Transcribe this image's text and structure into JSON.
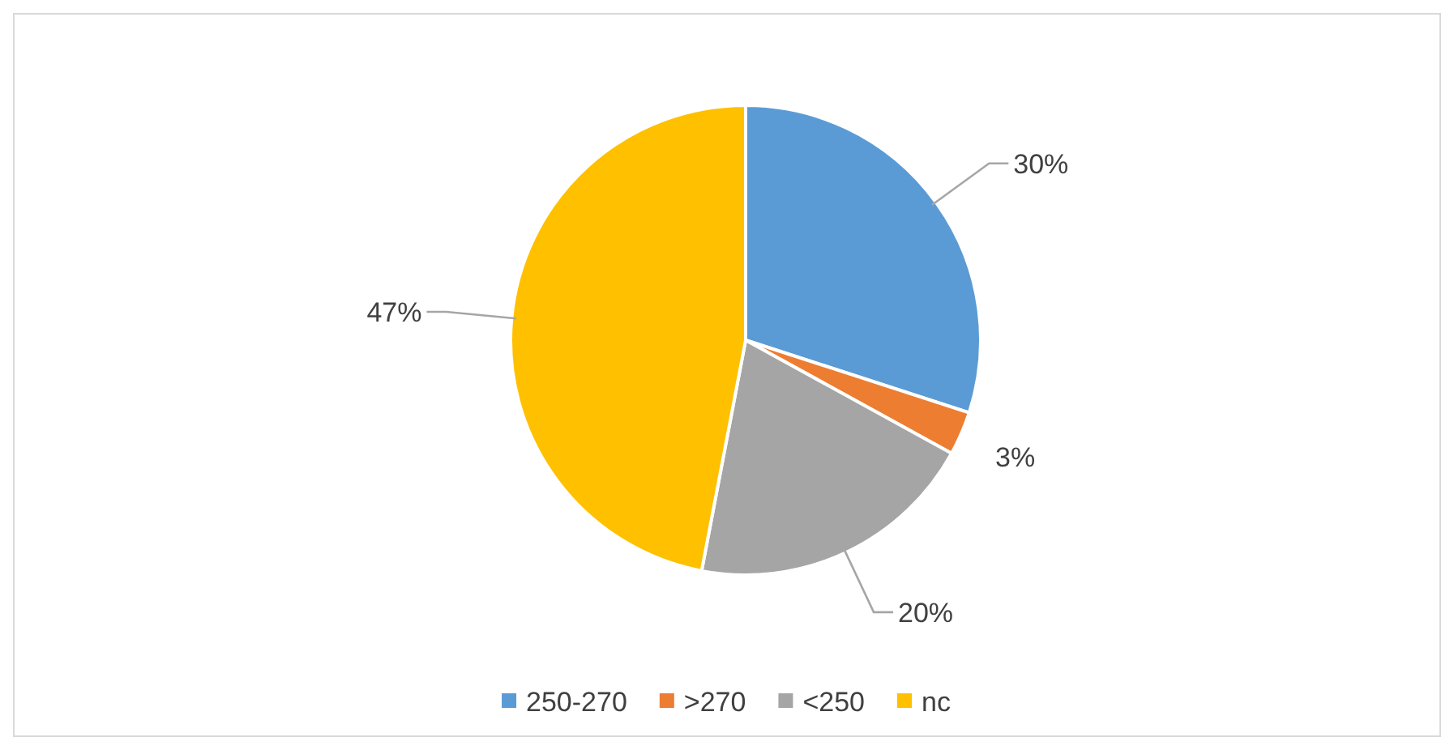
{
  "chart_data": {
    "type": "pie",
    "categories": [
      "250-270",
      ">270",
      "<250",
      "nc"
    ],
    "values": [
      30,
      3,
      20,
      47
    ],
    "colors": [
      "#5b9bd5",
      "#ed7d31",
      "#a5a5a5",
      "#ffc000"
    ],
    "value_labels": [
      "30%",
      "3%",
      "20%",
      "47%"
    ],
    "legend": "bottom"
  }
}
